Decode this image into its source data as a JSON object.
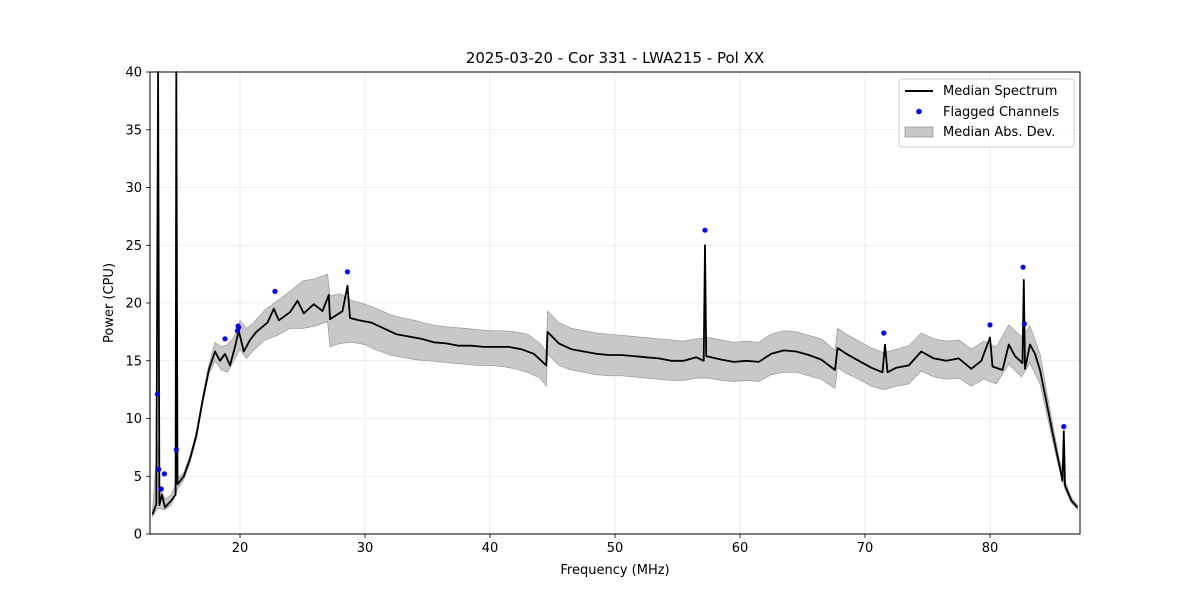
{
  "colors": {
    "median": "#000000",
    "flagged": "#0000ff",
    "band": "#c8c8c8",
    "band_edge": "#9a9a9a",
    "grid": "#e6e6e6"
  },
  "chart_data": {
    "type": "line",
    "title": "2025-03-20 - Cor 331 - LWA215 - Pol XX",
    "xlabel": "Frequency (MHz)",
    "ylabel": "Power (CPU)",
    "xlim": [
      12.8,
      87.2
    ],
    "ylim": [
      0,
      40
    ],
    "xticks": [
      20,
      30,
      40,
      50,
      60,
      70,
      80
    ],
    "yticks": [
      0,
      5,
      10,
      15,
      20,
      25,
      30,
      35,
      40
    ],
    "grid": true,
    "legend_position": "top-right",
    "legend": [
      "Median Spectrum",
      "Flagged Channels",
      "Median Abs. Dev."
    ],
    "series": [
      {
        "name": "Median Spectrum",
        "points": [
          [
            13.0,
            1.7
          ],
          [
            13.3,
            2.6
          ],
          [
            13.45,
            40
          ],
          [
            13.55,
            2.5
          ],
          [
            13.75,
            3.4
          ],
          [
            14.0,
            2.3
          ],
          [
            14.5,
            2.9
          ],
          [
            14.85,
            3.4
          ],
          [
            14.9,
            40
          ],
          [
            15.0,
            4.3
          ],
          [
            15.5,
            5.0
          ],
          [
            16.0,
            6.5
          ],
          [
            16.5,
            8.5
          ],
          [
            17.0,
            11.5
          ],
          [
            17.5,
            14.2
          ],
          [
            18.0,
            15.8
          ],
          [
            18.4,
            15.0
          ],
          [
            18.8,
            15.6
          ],
          [
            19.2,
            14.6
          ],
          [
            19.6,
            16.2
          ],
          [
            19.9,
            17.6
          ],
          [
            20.3,
            15.8
          ],
          [
            20.8,
            16.8
          ],
          [
            21.3,
            17.5
          ],
          [
            22.2,
            18.3
          ],
          [
            22.7,
            19.5
          ],
          [
            23.1,
            18.5
          ],
          [
            24.0,
            19.2
          ],
          [
            24.6,
            20.2
          ],
          [
            25.1,
            19.1
          ],
          [
            25.9,
            19.9
          ],
          [
            26.6,
            19.3
          ],
          [
            27.1,
            20.7
          ],
          [
            27.2,
            18.6
          ],
          [
            28.2,
            19.3
          ],
          [
            28.6,
            21.5
          ],
          [
            28.8,
            18.7
          ],
          [
            29.5,
            18.5
          ],
          [
            30.5,
            18.3
          ],
          [
            31.5,
            17.8
          ],
          [
            32.5,
            17.3
          ],
          [
            33.5,
            17.1
          ],
          [
            34.5,
            16.9
          ],
          [
            35.5,
            16.6
          ],
          [
            36.5,
            16.5
          ],
          [
            37.5,
            16.3
          ],
          [
            38.5,
            16.3
          ],
          [
            39.5,
            16.2
          ],
          [
            40.5,
            16.2
          ],
          [
            41.5,
            16.2
          ],
          [
            42.5,
            16.0
          ],
          [
            43.5,
            15.6
          ],
          [
            44.5,
            14.6
          ],
          [
            44.6,
            17.5
          ],
          [
            45.5,
            16.5
          ],
          [
            46.5,
            16.0
          ],
          [
            47.5,
            15.8
          ],
          [
            48.5,
            15.6
          ],
          [
            49.5,
            15.5
          ],
          [
            50.5,
            15.5
          ],
          [
            51.5,
            15.4
          ],
          [
            52.5,
            15.3
          ],
          [
            53.5,
            15.2
          ],
          [
            54.5,
            15.0
          ],
          [
            55.5,
            15.0
          ],
          [
            56.5,
            15.3
          ],
          [
            57.1,
            15.0
          ],
          [
            57.2,
            25.0
          ],
          [
            57.3,
            15.4
          ],
          [
            58.5,
            15.1
          ],
          [
            59.5,
            14.9
          ],
          [
            60.5,
            15.0
          ],
          [
            61.5,
            14.9
          ],
          [
            62.5,
            15.6
          ],
          [
            63.5,
            15.9
          ],
          [
            64.5,
            15.8
          ],
          [
            65.5,
            15.5
          ],
          [
            66.5,
            15.1
          ],
          [
            67.6,
            14.2
          ],
          [
            67.8,
            16.1
          ],
          [
            68.5,
            15.6
          ],
          [
            69.5,
            15.0
          ],
          [
            70.5,
            14.4
          ],
          [
            71.4,
            14.0
          ],
          [
            71.6,
            16.4
          ],
          [
            71.8,
            14.0
          ],
          [
            72.5,
            14.4
          ],
          [
            73.5,
            14.6
          ],
          [
            74.5,
            15.8
          ],
          [
            75.5,
            15.2
          ],
          [
            76.5,
            15.0
          ],
          [
            77.5,
            15.2
          ],
          [
            78.5,
            14.3
          ],
          [
            79.3,
            15.0
          ],
          [
            80.0,
            17.0
          ],
          [
            80.2,
            14.5
          ],
          [
            81.0,
            14.2
          ],
          [
            81.5,
            16.4
          ],
          [
            82.0,
            15.4
          ],
          [
            82.6,
            14.8
          ],
          [
            82.7,
            22.0
          ],
          [
            82.8,
            14.3
          ],
          [
            83.2,
            16.4
          ],
          [
            83.6,
            15.6
          ],
          [
            84.0,
            14.2
          ],
          [
            84.5,
            11.5
          ],
          [
            85.0,
            8.8
          ],
          [
            85.5,
            6.2
          ],
          [
            85.8,
            4.6
          ],
          [
            85.9,
            8.9
          ],
          [
            86.0,
            4.2
          ],
          [
            86.5,
            2.9
          ],
          [
            87.0,
            2.3
          ]
        ]
      },
      {
        "name": "Median Abs. Dev.",
        "points": [
          [
            13.0,
            1.5,
            2.0
          ],
          [
            13.4,
            2.2,
            8.0
          ],
          [
            13.6,
            2.2,
            4.0
          ],
          [
            14.0,
            2.1,
            3.0
          ],
          [
            14.5,
            2.5,
            3.4
          ],
          [
            15.0,
            3.9,
            4.8
          ],
          [
            15.5,
            4.7,
            5.3
          ],
          [
            16.0,
            6.2,
            6.8
          ],
          [
            16.5,
            8.2,
            8.9
          ],
          [
            17.0,
            11.2,
            11.9
          ],
          [
            17.5,
            13.8,
            14.6
          ],
          [
            18.0,
            15.0,
            16.6
          ],
          [
            18.5,
            14.2,
            16.2
          ],
          [
            19.0,
            14.0,
            16.4
          ],
          [
            19.5,
            15.0,
            17.0
          ],
          [
            20.0,
            16.0,
            18.5
          ],
          [
            20.5,
            15.2,
            17.8
          ],
          [
            21.0,
            15.8,
            18.2
          ],
          [
            22.0,
            16.8,
            19.4
          ],
          [
            23.0,
            17.2,
            20.2
          ],
          [
            24.0,
            17.8,
            21.0
          ],
          [
            25.0,
            17.8,
            21.9
          ],
          [
            26.0,
            18.0,
            22.1
          ],
          [
            27.0,
            18.4,
            22.5
          ],
          [
            27.2,
            16.2,
            20.6
          ],
          [
            28.0,
            16.5,
            20.8
          ],
          [
            29.0,
            16.6,
            20.2
          ],
          [
            30.0,
            16.4,
            19.9
          ],
          [
            31.0,
            15.9,
            19.5
          ],
          [
            32.0,
            15.5,
            19.0
          ],
          [
            33.0,
            15.3,
            18.7
          ],
          [
            34.0,
            15.1,
            18.5
          ],
          [
            35.0,
            15.0,
            18.2
          ],
          [
            36.0,
            14.9,
            18.0
          ],
          [
            37.0,
            14.8,
            17.9
          ],
          [
            38.0,
            14.7,
            17.8
          ],
          [
            39.0,
            14.6,
            17.7
          ],
          [
            40.0,
            14.6,
            17.6
          ],
          [
            41.0,
            14.5,
            17.6
          ],
          [
            42.0,
            14.3,
            17.5
          ],
          [
            43.0,
            14.0,
            17.3
          ],
          [
            44.0,
            13.5,
            16.5
          ],
          [
            44.5,
            12.8,
            15.8
          ],
          [
            44.6,
            15.6,
            19.3
          ],
          [
            45.5,
            14.6,
            18.3
          ],
          [
            46.5,
            14.2,
            17.8
          ],
          [
            47.5,
            14.0,
            17.6
          ],
          [
            48.5,
            13.8,
            17.4
          ],
          [
            49.5,
            13.7,
            17.3
          ],
          [
            50.5,
            13.7,
            17.2
          ],
          [
            51.5,
            13.6,
            17.1
          ],
          [
            52.5,
            13.5,
            17.0
          ],
          [
            53.5,
            13.4,
            16.9
          ],
          [
            54.5,
            13.3,
            16.8
          ],
          [
            55.5,
            13.3,
            16.7
          ],
          [
            56.5,
            13.5,
            16.9
          ],
          [
            57.5,
            13.5,
            17.0
          ],
          [
            58.5,
            13.3,
            16.8
          ],
          [
            59.5,
            13.2,
            16.6
          ],
          [
            60.5,
            13.3,
            16.7
          ],
          [
            61.5,
            13.2,
            16.6
          ],
          [
            62.5,
            13.8,
            17.3
          ],
          [
            63.5,
            14.0,
            17.6
          ],
          [
            64.5,
            14.0,
            17.5
          ],
          [
            65.5,
            13.7,
            17.2
          ],
          [
            66.5,
            13.4,
            16.9
          ],
          [
            67.6,
            12.6,
            15.9
          ],
          [
            67.8,
            14.4,
            17.8
          ],
          [
            68.5,
            13.9,
            17.3
          ],
          [
            69.5,
            13.4,
            16.7
          ],
          [
            70.5,
            12.8,
            16.1
          ],
          [
            71.5,
            12.5,
            15.7
          ],
          [
            72.5,
            12.8,
            16.0
          ],
          [
            73.5,
            13.0,
            16.3
          ],
          [
            74.5,
            14.1,
            17.4
          ],
          [
            75.5,
            13.6,
            16.9
          ],
          [
            76.5,
            13.4,
            16.7
          ],
          [
            77.5,
            13.5,
            16.8
          ],
          [
            78.5,
            12.8,
            16.0
          ],
          [
            79.5,
            13.4,
            16.7
          ],
          [
            80.5,
            13.0,
            16.2
          ],
          [
            81.5,
            14.7,
            18.1
          ],
          [
            82.5,
            13.6,
            17.1
          ],
          [
            83.2,
            14.8,
            18.0
          ],
          [
            84.0,
            13.0,
            15.6
          ],
          [
            84.5,
            10.6,
            12.5
          ],
          [
            85.0,
            8.1,
            9.6
          ],
          [
            85.5,
            5.8,
            6.7
          ],
          [
            86.0,
            3.9,
            4.6
          ],
          [
            86.5,
            2.7,
            3.2
          ],
          [
            87.0,
            2.1,
            2.5
          ]
        ]
      },
      {
        "name": "Flagged Channels",
        "points": [
          [
            13.4,
            12.1
          ],
          [
            13.5,
            5.6
          ],
          [
            13.7,
            3.9
          ],
          [
            13.95,
            5.2
          ],
          [
            14.9,
            7.3
          ],
          [
            18.8,
            16.9
          ],
          [
            19.8,
            17.6
          ],
          [
            19.85,
            18.0
          ],
          [
            19.9,
            17.9
          ],
          [
            22.8,
            21.0
          ],
          [
            28.6,
            22.7
          ],
          [
            57.2,
            26.3
          ],
          [
            71.5,
            17.4
          ],
          [
            80.0,
            18.1
          ],
          [
            82.65,
            23.1
          ],
          [
            82.75,
            18.2
          ],
          [
            85.9,
            9.3
          ]
        ]
      }
    ]
  }
}
